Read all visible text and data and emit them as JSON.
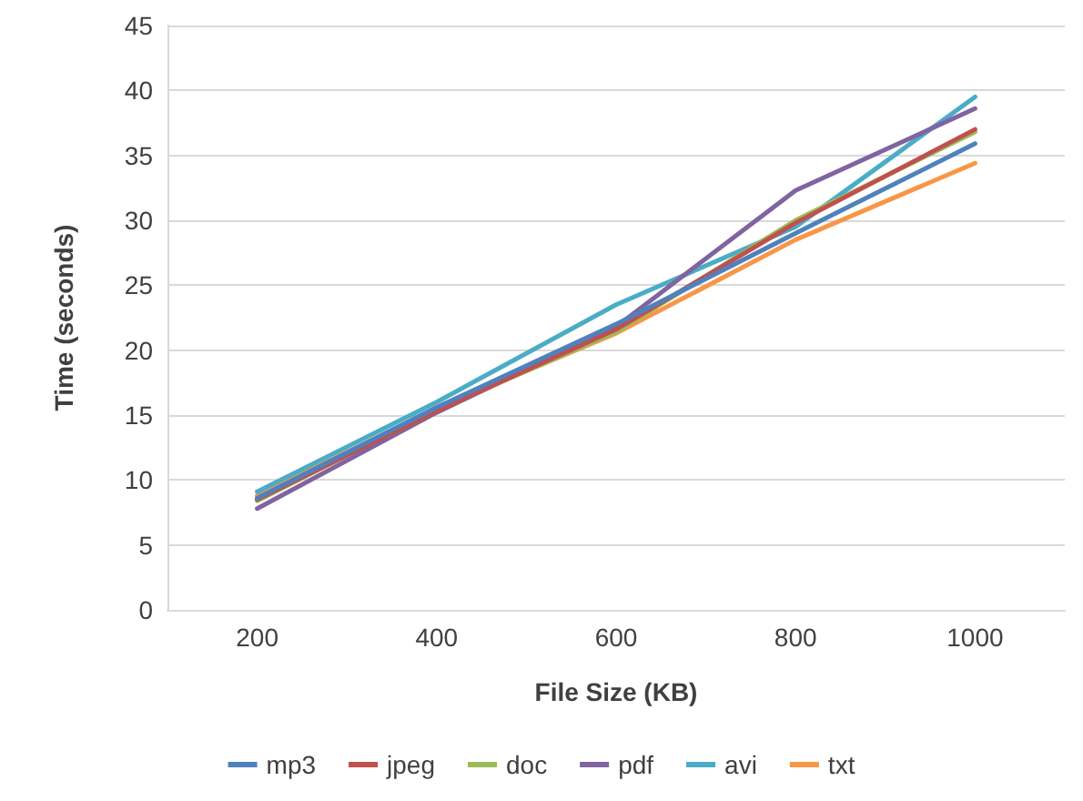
{
  "chart_data": {
    "type": "line",
    "xlabel": "File Size (KB)",
    "ylabel": "Time (seconds)",
    "categories": [
      "200",
      "400",
      "600",
      "800",
      "1000"
    ],
    "series": [
      {
        "name": "mp3",
        "color": "#4f81bd",
        "values": [
          8.6,
          15.6,
          22,
          29,
          35.9
        ]
      },
      {
        "name": "jpeg",
        "color": "#c0504d",
        "values": [
          8.5,
          15.3,
          21.6,
          29.8,
          37
        ]
      },
      {
        "name": "doc",
        "color": "#9bbb59",
        "values": [
          8.4,
          15.4,
          21.4,
          30,
          36.8
        ]
      },
      {
        "name": "pdf",
        "color": "#8064a2",
        "values": [
          7.8,
          15.2,
          21.8,
          32.3,
          38.6
        ]
      },
      {
        "name": "avi",
        "color": "#4bacc6",
        "values": [
          9.1,
          16,
          23.5,
          29.5,
          39.5
        ]
      },
      {
        "name": "txt",
        "color": "#f79646",
        "values": [
          8.8,
          15.5,
          21.3,
          28.5,
          34.4
        ]
      }
    ],
    "ylim": [
      0,
      45
    ],
    "yticks": [
      0,
      5,
      10,
      15,
      20,
      25,
      30,
      35,
      40,
      45
    ],
    "grid": "y",
    "legend": "bottom",
    "marker": "none",
    "line_style": "solid"
  }
}
